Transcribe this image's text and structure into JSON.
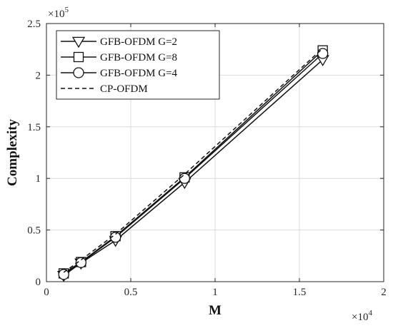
{
  "chart_data": {
    "type": "line",
    "title": "",
    "xlabel": "M",
    "ylabel": "Complexity",
    "x_exponent": "×10^4",
    "y_exponent": "×10^5",
    "x_scale": 10000,
    "y_scale": 100000,
    "xlim": [
      0,
      20000
    ],
    "ylim": [
      0,
      250000
    ],
    "xticks": [
      0,
      5000,
      10000,
      15000,
      20000
    ],
    "yticks": [
      0,
      50000,
      100000,
      150000,
      200000,
      250000
    ],
    "xtick_labels": [
      "0",
      "0.5",
      "1",
      "1.5",
      "2"
    ],
    "ytick_labels": [
      "0",
      "0.5",
      "1",
      "1.5",
      "2",
      "2.5"
    ],
    "grid": true,
    "legend_position": "top-left",
    "series": [
      {
        "name": "GFB-OFDM G=2",
        "marker": "triangle-down",
        "dash": "solid",
        "x": [
          1024,
          2048,
          4096,
          8192,
          16384
        ],
        "y": [
          6000,
          18000,
          40000,
          96000,
          215000
        ]
      },
      {
        "name": "GFB-OFDM G=8",
        "marker": "square",
        "dash": "solid",
        "x": [
          1024,
          2048,
          4096,
          8192,
          16384
        ],
        "y": [
          8000,
          19000,
          44000,
          101000,
          224000
        ]
      },
      {
        "name": "GFB-OFDM G=4",
        "marker": "circle",
        "dash": "solid",
        "x": [
          1024,
          2048,
          4096,
          8192,
          16384
        ],
        "y": [
          7000,
          18500,
          43000,
          100000,
          221000
        ]
      },
      {
        "name": "CP-OFDM",
        "marker": "none",
        "dash": "dashed",
        "x": [
          1024,
          2048,
          4096,
          8192,
          16384
        ],
        "y": [
          9000,
          21000,
          46000,
          104000,
          226000
        ]
      }
    ]
  }
}
